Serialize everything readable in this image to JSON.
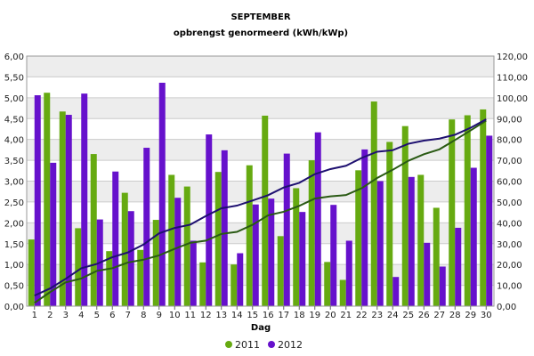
{
  "chart_data": {
    "type": "bar",
    "title": "SEPTEMBER",
    "subtitle": "opbrengst genormeerd (kWh/kWp)",
    "xlabel": "Dag",
    "ylabel": "",
    "ylim": [
      0,
      6
    ],
    "yticks": [
      "0,00",
      "0,50",
      "1,00",
      "1,50",
      "2,00",
      "2,50",
      "3,00",
      "3,50",
      "4,00",
      "4,50",
      "5,00",
      "5,50",
      "6,00"
    ],
    "y2lim": [
      0,
      120
    ],
    "y2ticks": [
      "0,00",
      "10,00",
      "20,00",
      "30,00",
      "40,00",
      "50,00",
      "60,00",
      "70,00",
      "80,00",
      "90,00",
      "100,00",
      "110,00",
      "120,00"
    ],
    "categories": [
      "1",
      "2",
      "3",
      "4",
      "5",
      "6",
      "7",
      "8",
      "9",
      "10",
      "11",
      "12",
      "13",
      "14",
      "15",
      "16",
      "17",
      "18",
      "19",
      "20",
      "21",
      "22",
      "23",
      "24",
      "25",
      "26",
      "27",
      "28",
      "29",
      "30"
    ],
    "series": [
      {
        "name": "2011",
        "color": "#66aa11",
        "values": [
          1.6,
          5.12,
          4.67,
          1.87,
          3.65,
          1.32,
          2.72,
          1.35,
          2.07,
          3.15,
          2.87,
          1.05,
          3.22,
          1.0,
          3.38,
          4.57,
          1.68,
          2.83,
          3.5,
          1.06,
          0.63,
          3.26,
          4.91,
          3.94,
          4.32,
          3.15,
          2.36,
          4.48,
          4.58,
          4.72
        ]
      },
      {
        "name": "2012",
        "color": "#6611cc",
        "values": [
          5.06,
          3.44,
          4.59,
          5.1,
          2.08,
          3.23,
          2.28,
          3.8,
          5.36,
          2.6,
          1.57,
          4.12,
          3.74,
          1.27,
          2.44,
          2.58,
          3.66,
          2.26,
          4.17,
          2.43,
          1.57,
          3.76,
          3.0,
          0.7,
          3.1,
          1.52,
          0.95,
          1.88,
          3.32,
          4.09
        ]
      }
    ],
    "cumulative": [
      {
        "name": "2011",
        "color": "#2a5a14",
        "axis": "right"
      },
      {
        "name": "2012",
        "color": "#1e1070",
        "axis": "right"
      }
    ],
    "legend": {
      "position": "bottom",
      "entries": [
        "2011",
        "2012"
      ]
    },
    "grid": "horizontal",
    "background_bands": [
      "#ffffff",
      "#ededed"
    ]
  }
}
